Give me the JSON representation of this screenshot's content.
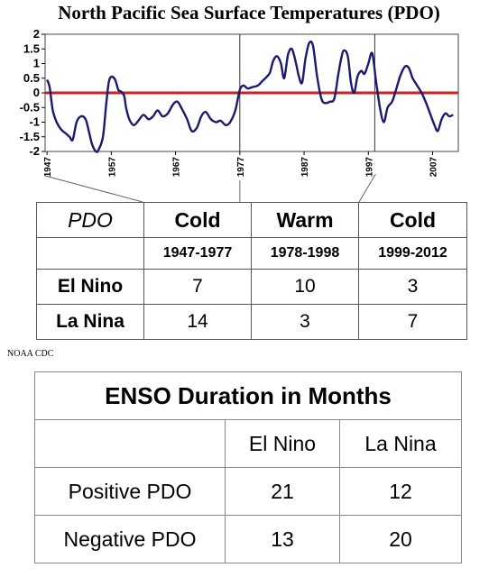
{
  "chart_data": {
    "type": "line",
    "title": "North Pacific Sea Surface Temperatures (PDO)",
    "ylim": [
      -2,
      2
    ],
    "yticks": [
      2,
      1.5,
      1,
      0.5,
      0,
      -0.5,
      -1,
      -1.5,
      -2
    ],
    "ytick_labels": [
      "2",
      "1.5",
      "1",
      "0.5",
      "0",
      "-0.5",
      "-1",
      "-1.5",
      "-2"
    ],
    "xticks": [
      1947,
      1957,
      1967,
      1977,
      1987,
      1997,
      2007
    ],
    "xtick_labels": [
      "1947",
      "1957",
      "1967",
      "1977",
      "1987",
      "1997",
      "2007"
    ],
    "xlim": [
      1946.7,
      2011
    ],
    "grid": false,
    "baseline_color": "#cc1f1f",
    "line_color": "#1a1a6e",
    "era_dividers": [
      1977,
      1998
    ],
    "series": [
      {
        "x": [
          1947,
          1947.4,
          1947.9,
          1948.5,
          1949.2,
          1950,
          1950.5,
          1951,
          1951.6,
          1952.3,
          1953,
          1953.5,
          1954,
          1954.6,
          1955,
          1955.7,
          1956.2,
          1956.6,
          1957,
          1957.6,
          1958.1,
          1958.5,
          1959,
          1959.3,
          1959.8,
          1960.5,
          1961.2,
          1962,
          1962.8,
          1963.5,
          1964.2,
          1965,
          1965.8,
          1966.6,
          1967.3,
          1968,
          1968.8,
          1969.5,
          1970.3,
          1971,
          1971.7,
          1972.5,
          1973.3,
          1974,
          1974.8,
          1975.5,
          1976.3,
          1977,
          1977.6,
          1978.2,
          1979,
          1979.8,
          1980.5,
          1981.2,
          1981.7,
          1982.2,
          1982.8,
          1983.4,
          1983.9,
          1984.5,
          1985.1,
          1985.7,
          1986.2,
          1986.7,
          1987.2,
          1987.8,
          1988.4,
          1989,
          1989.7,
          1990.3,
          1991,
          1991.7,
          1992.3,
          1992.8,
          1993.2,
          1993.8,
          1994.3,
          1994.8,
          1995.3,
          1995.9,
          1996.4,
          1997,
          1997.6,
          1998.2,
          1998.8,
          1999.4,
          2000,
          2000.7,
          2001.3,
          2002,
          2002.7,
          2003.3,
          2003.9,
          2004.6,
          2005.3,
          2006,
          2006.6,
          2007.2,
          2007.8,
          2008.4,
          2009,
          2009.6,
          2010.2
        ],
        "y": [
          0.45,
          0.2,
          -0.6,
          -1.0,
          -1.25,
          -1.4,
          -1.5,
          -1.6,
          -1.0,
          -0.8,
          -0.9,
          -1.3,
          -1.75,
          -2.0,
          -1.95,
          -1.5,
          -0.4,
          0.35,
          0.55,
          0.45,
          0.1,
          0.05,
          -0.1,
          -0.5,
          -0.9,
          -1.1,
          -0.95,
          -0.75,
          -0.9,
          -0.8,
          -0.6,
          -0.8,
          -0.7,
          -0.4,
          -0.3,
          -0.55,
          -0.9,
          -1.3,
          -1.2,
          -0.8,
          -0.65,
          -0.9,
          -1.0,
          -0.95,
          -1.1,
          -1.0,
          -0.6,
          0.1,
          0.25,
          0.15,
          0.2,
          0.25,
          0.4,
          0.55,
          0.7,
          1.1,
          1.25,
          1.0,
          0.5,
          1.3,
          1.5,
          1.05,
          0.55,
          0.35,
          1.15,
          1.7,
          1.6,
          0.6,
          -0.2,
          -0.35,
          -0.3,
          -0.2,
          0.6,
          1.2,
          1.45,
          1.25,
          0.35,
          0.0,
          0.55,
          0.75,
          0.65,
          1.0,
          1.35,
          0.4,
          -0.5,
          -1.0,
          -0.5,
          -0.3,
          0.1,
          0.6,
          0.9,
          0.85,
          0.5,
          0.25,
          0.0,
          -0.35,
          -0.7,
          -1.05,
          -1.3,
          -0.9,
          -0.7,
          -0.8,
          -0.75
        ]
      }
    ]
  },
  "pdo_table": {
    "header": [
      "PDO",
      "Cold",
      "Warm",
      "Cold"
    ],
    "periods": [
      "1947-1977",
      "1978-1998",
      "1999-2012"
    ],
    "rows": [
      {
        "label": "El Nino",
        "values": [
          "7",
          "10",
          "3"
        ]
      },
      {
        "label": "La Nina",
        "values": [
          "14",
          "3",
          "7"
        ]
      }
    ]
  },
  "source_credit": "NOAA CDC",
  "enso_table": {
    "title": "ENSO Duration in Months",
    "columns": [
      "El Nino",
      "La Nina"
    ],
    "rows": [
      {
        "label": "Positive PDO",
        "values": [
          "21",
          "12"
        ]
      },
      {
        "label": "Negative PDO",
        "values": [
          "13",
          "20"
        ]
      }
    ]
  }
}
